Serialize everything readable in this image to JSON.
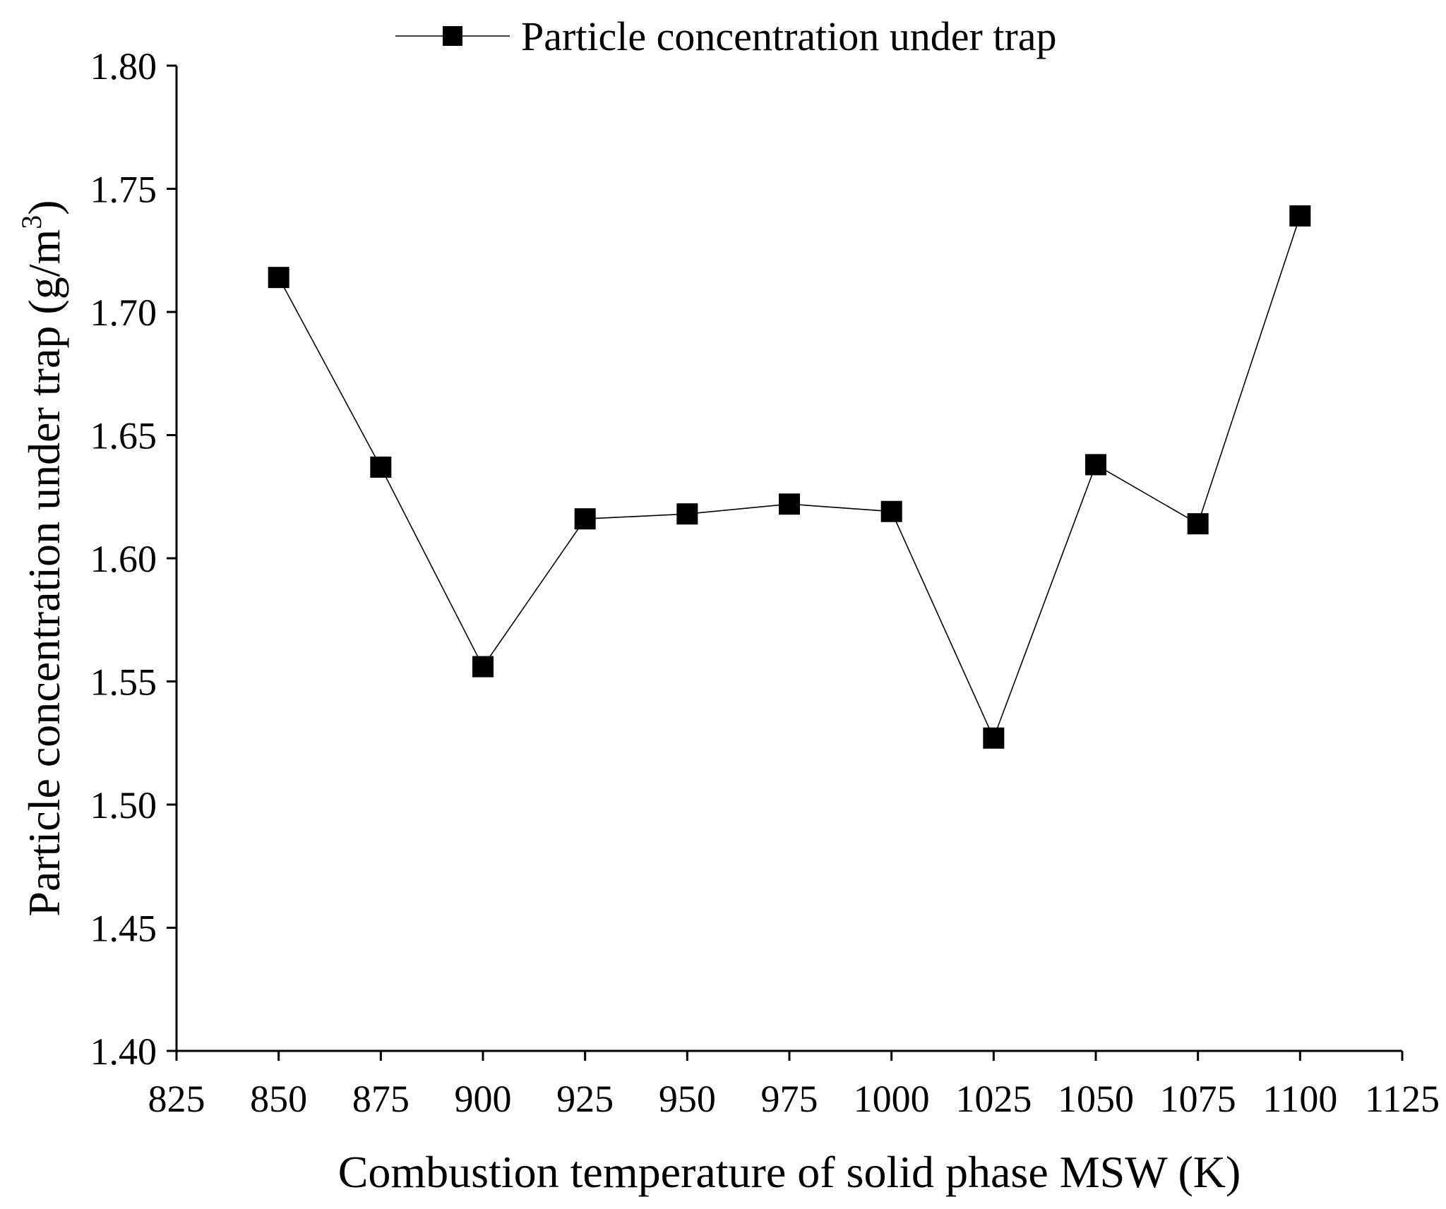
{
  "chart_data": {
    "type": "line",
    "title": "",
    "xlabel": "Combustion temperature of solid phase MSW (K)",
    "ylabel_main": "Particle concentration under trap (g/m",
    "ylabel_sup": "3",
    "ylabel_close": ")",
    "xlim": [
      825,
      1125
    ],
    "ylim": [
      1.4,
      1.8
    ],
    "x_ticks": [
      "825",
      "850",
      "875",
      "900",
      "925",
      "950",
      "975",
      "1000",
      "1025",
      "1050",
      "1075",
      "1100",
      "1125"
    ],
    "y_ticks": [
      "1.40",
      "1.45",
      "1.50",
      "1.55",
      "1.60",
      "1.65",
      "1.70",
      "1.75",
      "1.80"
    ],
    "legend_position": "top",
    "series": [
      {
        "name": "Particle concentration under trap",
        "marker": "square",
        "color": "#000000",
        "x": [
          850,
          875,
          900,
          925,
          950,
          975,
          1000,
          1025,
          1050,
          1075,
          1100
        ],
        "y": [
          1.714,
          1.637,
          1.556,
          1.616,
          1.618,
          1.622,
          1.619,
          1.527,
          1.638,
          1.614,
          1.739
        ]
      }
    ]
  }
}
